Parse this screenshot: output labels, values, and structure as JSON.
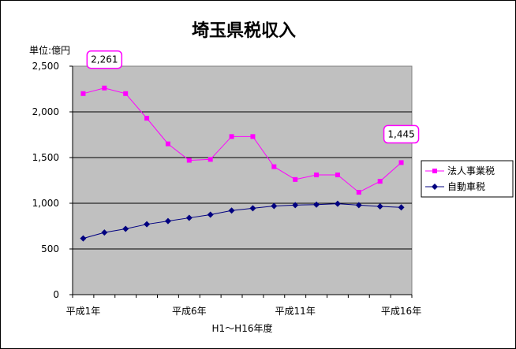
{
  "chart_data": {
    "type": "line",
    "title": "埼玉県税収入",
    "unit_label": "単位:億円",
    "xlabel": "H1～H16年度",
    "x": [
      "H1",
      "H2",
      "H3",
      "H4",
      "H5",
      "H6",
      "H7",
      "H8",
      "H9",
      "H10",
      "H11",
      "H12",
      "H13",
      "H14",
      "H15",
      "H16"
    ],
    "x_tick_labels": [
      {
        "index": 0,
        "label": "平成1年"
      },
      {
        "index": 5,
        "label": "平成6年"
      },
      {
        "index": 10,
        "label": "平成11年"
      },
      {
        "index": 15,
        "label": "平成16年"
      }
    ],
    "ylim": [
      0,
      2500
    ],
    "y_ticks": [
      0,
      500,
      1000,
      1500,
      2000,
      2500
    ],
    "y_tick_labels": [
      "0",
      "500",
      "1,000",
      "1,500",
      "2,000",
      "2,500"
    ],
    "grid": true,
    "legend_position": "right",
    "series": [
      {
        "name": "法人事業税",
        "color": "#ff00ff",
        "marker": "square",
        "values": [
          2200,
          2261,
          2200,
          1930,
          1650,
          1470,
          1480,
          1730,
          1730,
          1400,
          1260,
          1310,
          1310,
          1120,
          1240,
          1445
        ]
      },
      {
        "name": "自動車税",
        "color": "#000080",
        "marker": "diamond",
        "values": [
          615,
          680,
          720,
          770,
          805,
          840,
          875,
          920,
          945,
          970,
          980,
          985,
          995,
          980,
          965,
          955
        ]
      }
    ],
    "annotations": [
      {
        "series": 0,
        "index": 1,
        "text": "2,261"
      },
      {
        "series": 0,
        "index": 15,
        "text": "1,445"
      }
    ]
  }
}
